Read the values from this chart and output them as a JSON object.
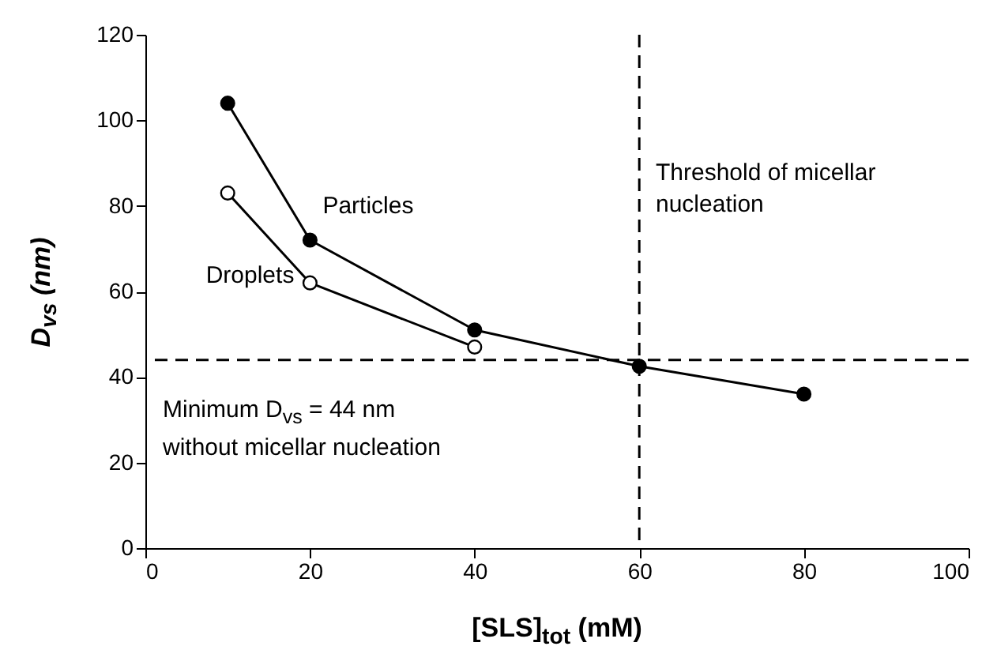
{
  "chart_data": {
    "type": "line",
    "xlabel": "[SLS]$_{tot}$ (mM)",
    "ylabel": "D$_{vs}$ (nm)",
    "xlim": [
      0,
      100
    ],
    "xticks": [
      0,
      20,
      40,
      60,
      80,
      100
    ],
    "ylim": [
      0,
      120
    ],
    "yticks": [
      0,
      20,
      40,
      60,
      80,
      100,
      120
    ],
    "grid": false,
    "marker": "circle",
    "line_style": "solid",
    "series": [
      {
        "name": "Particles",
        "color": "#000000",
        "x": [
          10,
          20,
          40,
          60,
          80
        ],
        "values": [
          104,
          72,
          51,
          42.5,
          36
        ]
      },
      {
        "name": "Droplets",
        "color": "#000000",
        "x": [
          10,
          20,
          40
        ],
        "values": [
          83,
          62,
          47
        ]
      }
    ],
    "ref_lines": [
      {
        "axis": "x",
        "value": 60,
        "line_style": "dashed",
        "color": "#000000"
      },
      {
        "axis": "y",
        "value": 44,
        "line_style": "dashed",
        "color": "#000000"
      }
    ],
    "annotations": [
      "Threshold of micellar nucleation",
      "Minimum D$_{vs}$ = 44 nm without micellar nucleation"
    ]
  }
}
